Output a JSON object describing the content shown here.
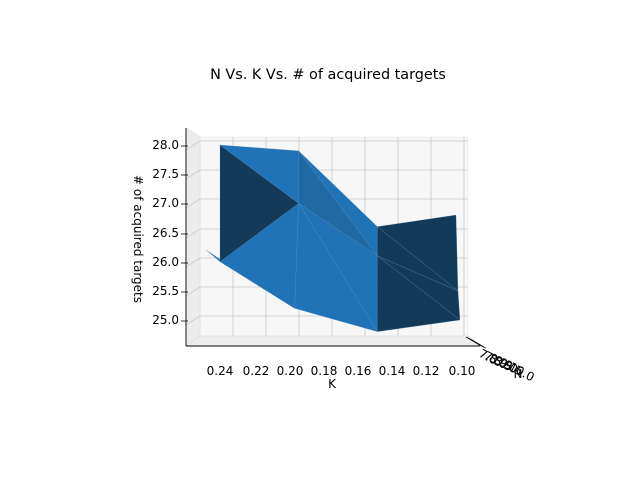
{
  "chart_data": {
    "type": "surface",
    "title": "N Vs. K Vs. # of acquired targets",
    "xlabel": "K",
    "ylabel": "N",
    "zlabel": "# of acquired targets",
    "x_ticks": [
      "0.24",
      "0.22",
      "0.20",
      "0.18",
      "0.16",
      "0.14",
      "0.12",
      "0.10"
    ],
    "y_ticks": [
      "7.0",
      "7.5",
      "8.0",
      "8.5",
      "9.0",
      "9.5",
      "10.0"
    ],
    "z_ticks": [
      "25.0",
      "25.5",
      "26.0",
      "26.5",
      "27.0",
      "27.5",
      "28.0"
    ],
    "xlim": [
      0.09,
      0.25
    ],
    "zlim": [
      24.6,
      28.2
    ],
    "grid": true,
    "surface_color": "#1f77b4",
    "points": [
      {
        "k": 0.25,
        "z": 28.0
      },
      {
        "k": 0.2,
        "z": 27.9
      },
      {
        "k": 0.15,
        "z": 26.6
      },
      {
        "k": 0.1,
        "z": 26.8
      },
      {
        "k": 0.25,
        "z": 26.0
      },
      {
        "k": 0.2,
        "z": 27.0
      },
      {
        "k": 0.15,
        "z": 26.1
      },
      {
        "k": 0.1,
        "z": 25.5
      },
      {
        "k": 0.25,
        "z": 26.2
      },
      {
        "k": 0.2,
        "z": 25.2
      },
      {
        "k": 0.15,
        "z": 24.8
      },
      {
        "k": 0.1,
        "z": 25.0
      }
    ]
  }
}
